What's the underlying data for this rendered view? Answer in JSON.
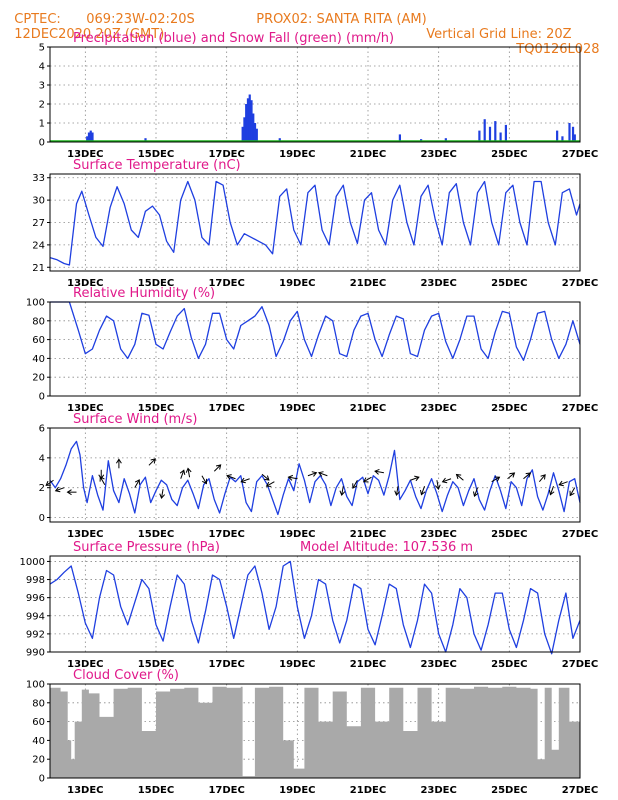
{
  "header": {
    "source": "CPTEC:",
    "coords": "069:23W-02:20S",
    "station": "PROX02: SANTA RITA (AM)",
    "datetime": "12DEC2020 20Z (GMT)",
    "grid_line": "Vertical Grid Line: 20Z",
    "code": "TQ0126L028"
  },
  "colors": {
    "header": "#e87a1e",
    "title": "#e0198a",
    "series": "#1f3fe0",
    "snow": "#19b219",
    "cloud": "#a9a9a9",
    "grid": "#8a8a8a"
  },
  "x_labels": [
    "13DEC",
    "15DEC",
    "17DEC",
    "19DEC",
    "21DEC",
    "23DEC",
    "25DEC",
    "27DEC"
  ],
  "chart_data": [
    {
      "type": "bar",
      "title": "Precipitation (blue) and Snow Fall (green) (mm/h)",
      "ylim": [
        0,
        5
      ],
      "yticks": [
        0,
        1,
        2,
        3,
        4,
        5
      ],
      "x_labels_visible": true,
      "series": [
        {
          "name": "Precipitation",
          "color": "#1f3fe0",
          "x": [
            13.05,
            13.1,
            13.15,
            13.2,
            14.7,
            17.45,
            17.5,
            17.55,
            17.6,
            17.65,
            17.7,
            17.75,
            17.8,
            17.85,
            18.5,
            21.9,
            22.5,
            23.2,
            24.15,
            24.3,
            24.45,
            24.6,
            24.75,
            24.9,
            26.35,
            26.5,
            26.7,
            26.8,
            26.85
          ],
          "values": [
            0.3,
            0.5,
            0.6,
            0.5,
            0.2,
            0.8,
            1.3,
            2.0,
            2.3,
            2.5,
            2.2,
            1.5,
            1.0,
            0.7,
            0.2,
            0.4,
            0.15,
            0.2,
            0.6,
            1.2,
            0.8,
            1.1,
            0.5,
            0.9,
            0.6,
            0.3,
            1.0,
            0.8,
            0.4
          ]
        },
        {
          "name": "Snow Fall",
          "color": "#19b219",
          "x": [
            12.0,
            27.0
          ],
          "values": [
            0.05,
            0.05
          ]
        }
      ]
    },
    {
      "type": "line",
      "title": "Surface Temperature (nC)",
      "ylim": [
        20.5,
        33.5
      ],
      "yticks": [
        21,
        24,
        27,
        30,
        33
      ],
      "x_labels_visible": true,
      "x": [
        12.0,
        12.2,
        12.4,
        12.55,
        12.75,
        12.9,
        13.1,
        13.3,
        13.5,
        13.7,
        13.9,
        14.1,
        14.3,
        14.5,
        14.7,
        14.9,
        15.1,
        15.3,
        15.5,
        15.7,
        15.9,
        16.1,
        16.3,
        16.5,
        16.7,
        16.9,
        17.1,
        17.3,
        17.5,
        17.7,
        17.9,
        18.1,
        18.3,
        18.5,
        18.7,
        18.9,
        19.1,
        19.3,
        19.5,
        19.7,
        19.9,
        20.1,
        20.3,
        20.5,
        20.7,
        20.9,
        21.1,
        21.3,
        21.5,
        21.7,
        21.9,
        22.1,
        22.3,
        22.5,
        22.7,
        22.9,
        23.1,
        23.3,
        23.5,
        23.7,
        23.9,
        24.1,
        24.3,
        24.5,
        24.7,
        24.9,
        25.1,
        25.3,
        25.5,
        25.7,
        25.9,
        26.1,
        26.3,
        26.5,
        26.7,
        26.9,
        27.0
      ],
      "values": [
        22.3,
        22.0,
        21.5,
        21.3,
        29.5,
        31.2,
        28.0,
        25.0,
        23.8,
        29.0,
        31.8,
        29.5,
        26.0,
        25.0,
        28.5,
        29.2,
        28.0,
        24.5,
        23.0,
        30.0,
        32.5,
        30.0,
        25.0,
        24.0,
        32.5,
        32.0,
        27.0,
        24.0,
        25.5,
        25.0,
        24.5,
        24.0,
        22.8,
        30.5,
        31.5,
        26.0,
        24.0,
        31.0,
        32.0,
        26.0,
        24.0,
        30.5,
        32.0,
        27.0,
        24.2,
        30.0,
        31.0,
        26.0,
        24.0,
        30.0,
        32.0,
        27.0,
        24.0,
        30.5,
        32.0,
        27.5,
        24.0,
        31.0,
        32.2,
        27.0,
        24.0,
        31.0,
        32.5,
        27.0,
        24.0,
        31.0,
        32.0,
        27.0,
        24.0,
        32.5,
        32.5,
        27.0,
        24.0,
        31.0,
        31.5,
        28.0,
        29.5
      ]
    },
    {
      "type": "line",
      "title": "Relative Humidity (%)",
      "ylim": [
        0,
        100
      ],
      "yticks": [
        0,
        20,
        40,
        60,
        80,
        100
      ],
      "x_labels_visible": true,
      "x": [
        12.0,
        12.3,
        12.55,
        12.8,
        13.0,
        13.2,
        13.4,
        13.6,
        13.8,
        14.0,
        14.2,
        14.4,
        14.6,
        14.8,
        15.0,
        15.2,
        15.4,
        15.6,
        15.8,
        16.0,
        16.2,
        16.4,
        16.6,
        16.8,
        17.0,
        17.2,
        17.4,
        17.6,
        17.8,
        18.0,
        18.2,
        18.4,
        18.6,
        18.8,
        19.0,
        19.2,
        19.4,
        19.6,
        19.8,
        20.0,
        20.2,
        20.4,
        20.6,
        20.8,
        21.0,
        21.2,
        21.4,
        21.6,
        21.8,
        22.0,
        22.2,
        22.4,
        22.6,
        22.8,
        23.0,
        23.2,
        23.4,
        23.6,
        23.8,
        24.0,
        24.2,
        24.4,
        24.6,
        24.8,
        25.0,
        25.2,
        25.4,
        25.6,
        25.8,
        26.0,
        26.2,
        26.4,
        26.6,
        26.8,
        27.0
      ],
      "values": [
        100,
        100,
        100,
        70,
        45,
        50,
        70,
        85,
        80,
        50,
        40,
        55,
        88,
        86,
        55,
        50,
        68,
        85,
        93,
        62,
        40,
        55,
        88,
        88,
        60,
        50,
        75,
        80,
        85,
        95,
        75,
        42,
        58,
        80,
        90,
        60,
        42,
        65,
        85,
        80,
        45,
        42,
        70,
        85,
        88,
        60,
        42,
        65,
        85,
        82,
        45,
        42,
        70,
        85,
        88,
        58,
        40,
        60,
        85,
        85,
        50,
        40,
        68,
        90,
        88,
        52,
        38,
        60,
        88,
        90,
        60,
        40,
        55,
        80,
        55
      ]
    },
    {
      "type": "line",
      "title": "Surface Wind (m/s)",
      "ylim": [
        -0.3,
        6
      ],
      "yticks": [
        0,
        2,
        4,
        6
      ],
      "x_labels_visible": true,
      "x": [
        12.0,
        12.15,
        12.3,
        12.45,
        12.6,
        12.75,
        12.85,
        12.95,
        13.05,
        13.2,
        13.35,
        13.5,
        13.65,
        13.8,
        13.95,
        14.1,
        14.25,
        14.4,
        14.55,
        14.7,
        14.85,
        15.0,
        15.15,
        15.3,
        15.45,
        15.6,
        15.75,
        15.9,
        16.05,
        16.2,
        16.35,
        16.5,
        16.65,
        16.8,
        16.95,
        17.1,
        17.25,
        17.4,
        17.55,
        17.7,
        17.85,
        18.0,
        18.15,
        18.3,
        18.45,
        18.6,
        18.75,
        18.9,
        19.05,
        19.2,
        19.35,
        19.5,
        19.65,
        19.8,
        19.95,
        20.1,
        20.25,
        20.4,
        20.55,
        20.7,
        20.85,
        21.0,
        21.15,
        21.3,
        21.45,
        21.6,
        21.75,
        21.9,
        22.05,
        22.2,
        22.35,
        22.5,
        22.65,
        22.8,
        22.95,
        23.1,
        23.25,
        23.4,
        23.55,
        23.7,
        23.85,
        24.0,
        24.15,
        24.3,
        24.45,
        24.6,
        24.75,
        24.9,
        25.05,
        25.2,
        25.35,
        25.5,
        25.65,
        25.8,
        25.95,
        26.1,
        26.25,
        26.4,
        26.55,
        26.7,
        26.85,
        27.0
      ],
      "values": [
        2.5,
        2.0,
        2.6,
        3.5,
        4.6,
        5.1,
        4.2,
        2.0,
        1.0,
        2.8,
        1.5,
        0.5,
        3.8,
        1.8,
        1.0,
        2.6,
        1.6,
        0.3,
        2.2,
        2.7,
        1.0,
        1.8,
        2.5,
        2.2,
        1.2,
        0.8,
        2.0,
        2.5,
        1.6,
        0.6,
        2.2,
        2.6,
        1.2,
        0.3,
        1.6,
        2.7,
        2.4,
        2.8,
        1.0,
        0.4,
        2.4,
        2.8,
        2.2,
        1.2,
        0.2,
        1.5,
        2.6,
        1.8,
        3.6,
        2.5,
        1.0,
        2.4,
        2.8,
        2.2,
        0.8,
        2.0,
        2.6,
        1.4,
        0.8,
        2.4,
        2.7,
        1.6,
        2.8,
        2.5,
        1.5,
        2.8,
        4.5,
        1.2,
        1.8,
        2.5,
        1.4,
        0.6,
        1.8,
        2.6,
        1.6,
        0.4,
        1.5,
        2.4,
        2.0,
        0.8,
        1.8,
        2.6,
        1.2,
        0.5,
        1.8,
        2.8,
        1.8,
        0.6,
        2.4,
        2.0,
        0.8,
        2.6,
        3.2,
        1.4,
        0.5,
        1.6,
        3.0,
        1.8,
        0.4,
        2.4,
        2.6,
        1.0
      ]
    },
    {
      "type": "line",
      "title": "Surface Pressure (hPa)",
      "annotation": "Model Altitude: 107.536 m",
      "ylim": [
        990,
        1000.6
      ],
      "yticks": [
        990,
        992,
        994,
        996,
        998,
        1000
      ],
      "x_labels_visible": true,
      "x": [
        12.0,
        12.2,
        12.4,
        12.6,
        12.8,
        13.0,
        13.2,
        13.4,
        13.6,
        13.8,
        14.0,
        14.2,
        14.4,
        14.6,
        14.8,
        15.0,
        15.2,
        15.4,
        15.6,
        15.8,
        16.0,
        16.2,
        16.4,
        16.6,
        16.8,
        17.0,
        17.2,
        17.4,
        17.6,
        17.8,
        18.0,
        18.2,
        18.4,
        18.6,
        18.8,
        19.0,
        19.2,
        19.4,
        19.6,
        19.8,
        20.0,
        20.2,
        20.4,
        20.6,
        20.8,
        21.0,
        21.2,
        21.4,
        21.6,
        21.8,
        22.0,
        22.2,
        22.4,
        22.6,
        22.8,
        23.0,
        23.2,
        23.4,
        23.6,
        23.8,
        24.0,
        24.2,
        24.4,
        24.6,
        24.8,
        25.0,
        25.2,
        25.4,
        25.6,
        25.8,
        26.0,
        26.2,
        26.4,
        26.6,
        26.8,
        27.0
      ],
      "values": [
        997.5,
        998.0,
        998.8,
        999.5,
        996.5,
        993.2,
        991.5,
        996.0,
        999.0,
        998.5,
        995.0,
        993.0,
        995.5,
        998.0,
        997.0,
        993.0,
        991.2,
        995.0,
        998.5,
        997.5,
        993.5,
        991.0,
        994.5,
        998.5,
        998.0,
        995.0,
        991.5,
        995.0,
        998.5,
        999.5,
        996.5,
        992.5,
        995.0,
        999.5,
        1000.0,
        995.0,
        991.5,
        994.0,
        998.0,
        997.5,
        993.5,
        991.0,
        993.5,
        997.5,
        997.0,
        992.5,
        990.8,
        994.0,
        997.5,
        997.0,
        993.0,
        990.5,
        993.5,
        997.5,
        996.5,
        992.0,
        990.0,
        993.0,
        997.0,
        996.0,
        992.0,
        990.2,
        993.0,
        996.5,
        996.5,
        992.5,
        990.5,
        993.5,
        997.0,
        996.5,
        992.0,
        989.8,
        993.5,
        996.5,
        991.5,
        993.5
      ]
    },
    {
      "type": "bar",
      "title": "Cloud Cover (%)",
      "ylim": [
        0,
        100
      ],
      "yticks": [
        0,
        20,
        40,
        60,
        80,
        100
      ],
      "x_labels_visible": true,
      "x": [
        12.0,
        12.3,
        12.5,
        12.6,
        12.7,
        12.9,
        13.1,
        13.4,
        13.8,
        14.2,
        14.6,
        15.0,
        15.4,
        15.8,
        16.2,
        16.6,
        17.0,
        17.4,
        17.45,
        17.8,
        18.2,
        18.6,
        18.9,
        19.2,
        19.6,
        20.0,
        20.4,
        20.8,
        21.2,
        21.6,
        22.0,
        22.4,
        22.8,
        23.2,
        23.6,
        24.0,
        24.4,
        24.8,
        25.2,
        25.6,
        25.8,
        26.0,
        26.2,
        26.4,
        26.7,
        27.0
      ],
      "values": [
        96,
        92,
        40,
        20,
        60,
        94,
        90,
        65,
        95,
        96,
        50,
        92,
        95,
        96,
        80,
        97,
        96,
        97,
        2,
        96,
        97,
        40,
        10,
        96,
        60,
        92,
        55,
        96,
        60,
        96,
        50,
        96,
        60,
        96,
        95,
        97,
        96,
        97,
        96,
        95,
        20,
        96,
        30,
        96,
        60,
        97
      ]
    }
  ],
  "wind_arrows": [
    {
      "day": 12.1,
      "speed": 2.5,
      "dir": 215
    },
    {
      "day": 12.4,
      "speed": 2.0,
      "dir": 200
    },
    {
      "day": 12.75,
      "speed": 1.7,
      "dir": 180
    },
    {
      "day": 13.45,
      "speed": 3.2,
      "dir": 270
    },
    {
      "day": 13.55,
      "speed": 2.2,
      "dir": 120
    },
    {
      "day": 13.95,
      "speed": 3.3,
      "dir": 90
    },
    {
      "day": 14.4,
      "speed": 2.0,
      "dir": 60
    },
    {
      "day": 14.8,
      "speed": 3.5,
      "dir": 45
    },
    {
      "day": 15.2,
      "speed": 1.9,
      "dir": 260
    },
    {
      "day": 15.7,
      "speed": 2.6,
      "dir": 70
    },
    {
      "day": 15.95,
      "speed": 2.7,
      "dir": 100
    },
    {
      "day": 16.3,
      "speed": 2.8,
      "dir": 300
    },
    {
      "day": 16.65,
      "speed": 3.1,
      "dir": 45
    },
    {
      "day": 17.25,
      "speed": 2.6,
      "dir": 160
    },
    {
      "day": 17.65,
      "speed": 2.6,
      "dir": 200
    },
    {
      "day": 18.0,
      "speed": 2.9,
      "dir": 320
    },
    {
      "day": 18.35,
      "speed": 2.4,
      "dir": 210
    },
    {
      "day": 19.0,
      "speed": 2.6,
      "dir": 170
    },
    {
      "day": 19.3,
      "speed": 2.8,
      "dir": 20
    },
    {
      "day": 19.85,
      "speed": 2.8,
      "dir": 160
    },
    {
      "day": 20.3,
      "speed": 2.1,
      "dir": 260
    },
    {
      "day": 20.7,
      "speed": 2.5,
      "dir": 240
    },
    {
      "day": 21.1,
      "speed": 2.7,
      "dir": 210
    },
    {
      "day": 21.45,
      "speed": 3.0,
      "dir": 170
    },
    {
      "day": 21.85,
      "speed": 2.1,
      "dir": 260
    },
    {
      "day": 22.2,
      "speed": 2.5,
      "dir": 20
    },
    {
      "day": 22.6,
      "speed": 2.1,
      "dir": 250
    },
    {
      "day": 22.95,
      "speed": 2.5,
      "dir": 280
    },
    {
      "day": 23.35,
      "speed": 2.6,
      "dir": 200
    },
    {
      "day": 23.7,
      "speed": 2.5,
      "dir": 140
    },
    {
      "day": 24.1,
      "speed": 2.0,
      "dir": 250
    },
    {
      "day": 24.5,
      "speed": 2.4,
      "dir": 30
    },
    {
      "day": 24.95,
      "speed": 2.6,
      "dir": 40
    },
    {
      "day": 25.4,
      "speed": 2.6,
      "dir": 40
    },
    {
      "day": 25.85,
      "speed": 2.4,
      "dir": 50
    },
    {
      "day": 26.25,
      "speed": 2.1,
      "dir": 250
    },
    {
      "day": 26.65,
      "speed": 2.4,
      "dir": 200
    },
    {
      "day": 26.85,
      "speed": 2.0,
      "dir": 240
    }
  ]
}
